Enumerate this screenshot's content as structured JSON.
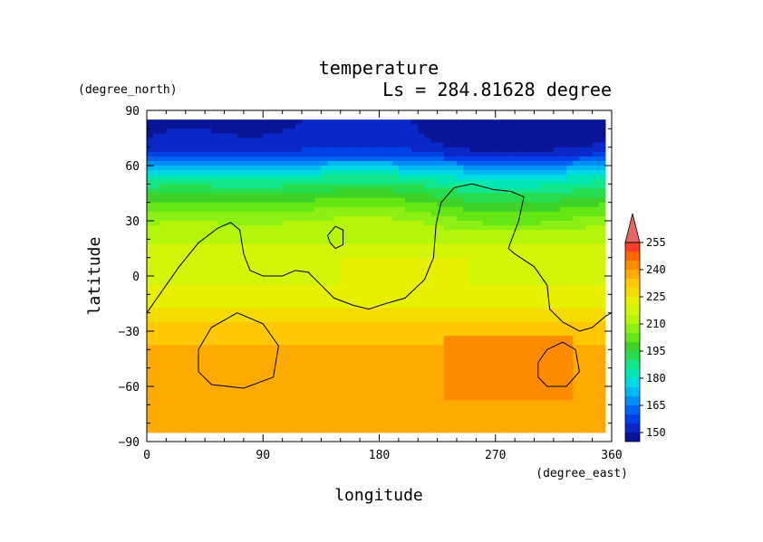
{
  "chart_data": {
    "type": "heatmap",
    "title": "temperature",
    "subtitle": "Ls = 284.81628 degree",
    "xlabel": "longitude",
    "ylabel": "latitude",
    "x_unit": "(degree_east)",
    "y_unit": "(degree_north)",
    "xlim": [
      0,
      360
    ],
    "ylim": [
      -90,
      90
    ],
    "data_lat_range": [
      -85,
      85
    ],
    "data_lon_range": [
      0,
      355
    ],
    "x_ticks": [
      0,
      90,
      180,
      270,
      360
    ],
    "y_ticks": [
      90,
      60,
      30,
      0,
      -30,
      -60,
      -90
    ],
    "x_tick_labels": [
      "0",
      "90",
      "180",
      "270",
      "360"
    ],
    "y_tick_labels": [
      "90",
      "60",
      "30",
      "0",
      "−30",
      "−60",
      "−90"
    ],
    "colorbar": {
      "levels": [
        145,
        150,
        155,
        160,
        165,
        170,
        175,
        180,
        185,
        190,
        195,
        200,
        205,
        210,
        215,
        220,
        225,
        230,
        235,
        240,
        245,
        250,
        255,
        260
      ],
      "colors": [
        "#0a1496",
        "#0a28c8",
        "#0040e6",
        "#0064f0",
        "#0090f5",
        "#00b8f0",
        "#00d8e6",
        "#00e6b4",
        "#14e68c",
        "#28dc50",
        "#3cd228",
        "#64e614",
        "#8cf014",
        "#b4f50a",
        "#d2f50a",
        "#e6f000",
        "#f5dc00",
        "#ffc800",
        "#ffaa00",
        "#ff8c00",
        "#ff6400",
        "#ff3c28",
        "#f01e32",
        "#e66464"
      ],
      "tick_labels": [
        "150",
        "165",
        "180",
        "195",
        "210",
        "225",
        "240",
        "255"
      ],
      "tick_values": [
        150,
        165,
        180,
        195,
        210,
        225,
        240,
        255
      ]
    },
    "lat_profile": [
      [
        85,
        148
      ],
      [
        72,
        150
      ],
      [
        66,
        156
      ],
      [
        60,
        170
      ],
      [
        54,
        182
      ],
      [
        48,
        190
      ],
      [
        42,
        197
      ],
      [
        36,
        203
      ],
      [
        30,
        208
      ],
      [
        24,
        213
      ],
      [
        18,
        215
      ],
      [
        12,
        216
      ],
      [
        6,
        217
      ],
      [
        0,
        218
      ],
      [
        -6,
        220
      ],
      [
        -12,
        222
      ],
      [
        -18,
        225
      ],
      [
        -24,
        230
      ],
      [
        -30,
        234
      ],
      [
        -45,
        236
      ],
      [
        -60,
        236
      ],
      [
        -75,
        236
      ],
      [
        -85,
        236
      ]
    ],
    "warm_cells": [
      {
        "lon": [
          65,
          200
        ],
        "lat": [
          -25,
          -60
        ],
        "value": 228
      },
      {
        "lon": [
          200,
          230
        ],
        "lat": [
          -35,
          -60
        ],
        "value": 230
      },
      {
        "lon": [
          230,
          330
        ],
        "lat": [
          -32,
          -68
        ],
        "value": 241
      },
      {
        "lon": [
          150,
          250
        ],
        "lat": [
          10,
          -20
        ],
        "value": 222
      }
    ],
    "contours": [
      [
        [
          0,
          -20
        ],
        [
          10,
          -10
        ],
        [
          25,
          5
        ],
        [
          40,
          18
        ],
        [
          55,
          26
        ],
        [
          65,
          29
        ],
        [
          72,
          25
        ],
        [
          75,
          12
        ],
        [
          80,
          3
        ],
        [
          90,
          0
        ],
        [
          105,
          0
        ],
        [
          115,
          3
        ],
        [
          125,
          2
        ],
        [
          135,
          -5
        ],
        [
          145,
          -12
        ],
        [
          160,
          -16
        ],
        [
          172,
          -18
        ],
        [
          185,
          -15
        ],
        [
          200,
          -12
        ],
        [
          215,
          -2
        ],
        [
          222,
          10
        ],
        [
          224,
          28
        ],
        [
          228,
          40
        ],
        [
          238,
          48
        ],
        [
          252,
          50
        ],
        [
          268,
          47
        ],
        [
          282,
          46
        ],
        [
          292,
          43
        ],
        [
          288,
          30
        ],
        [
          280,
          15
        ],
        [
          285,
          12
        ],
        [
          300,
          5
        ],
        [
          310,
          -5
        ],
        [
          312,
          -18
        ],
        [
          322,
          -25
        ],
        [
          335,
          -30
        ],
        [
          345,
          -28
        ],
        [
          355,
          -22
        ],
        [
          360,
          -20
        ]
      ],
      [
        [
          140,
          22
        ],
        [
          146,
          27
        ],
        [
          152,
          25
        ],
        [
          152,
          17
        ],
        [
          146,
          15
        ],
        [
          142,
          18
        ],
        [
          140,
          22
        ]
      ],
      [
        [
          40,
          -40
        ],
        [
          50,
          -28
        ],
        [
          70,
          -20
        ],
        [
          90,
          -26
        ],
        [
          102,
          -38
        ],
        [
          98,
          -55
        ],
        [
          75,
          -61
        ],
        [
          50,
          -59
        ],
        [
          40,
          -52
        ],
        [
          40,
          -40
        ]
      ],
      [
        [
          303,
          -47
        ],
        [
          310,
          -40
        ],
        [
          322,
          -36
        ],
        [
          332,
          -40
        ],
        [
          335,
          -52
        ],
        [
          325,
          -60
        ],
        [
          310,
          -60
        ],
        [
          303,
          -55
        ],
        [
          303,
          -47
        ]
      ]
    ]
  }
}
